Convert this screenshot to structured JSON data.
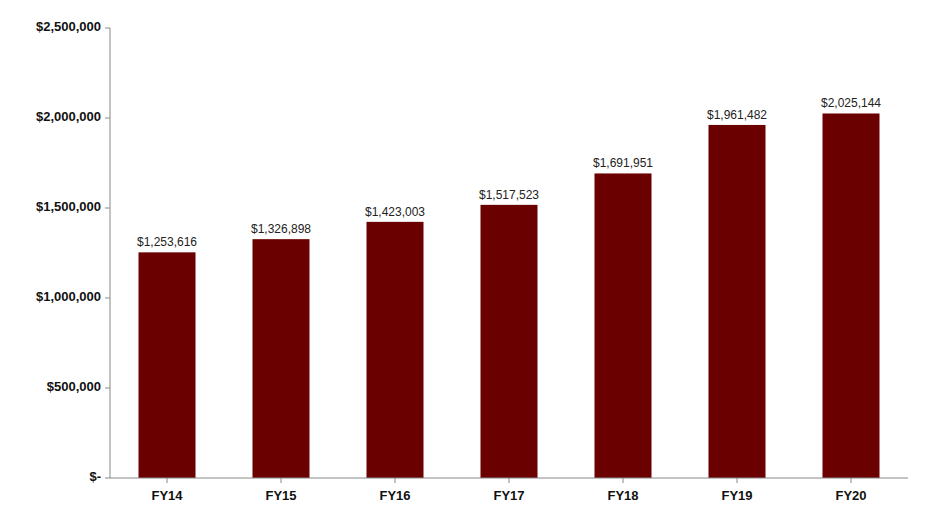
{
  "chart_data": {
    "type": "bar",
    "categories": [
      "FY14",
      "FY15",
      "FY16",
      "FY17",
      "FY18",
      "FY19",
      "FY20"
    ],
    "values": [
      1253616,
      1326898,
      1423003,
      1517523,
      1691951,
      1961482,
      2025144
    ],
    "value_labels": [
      "$1,253,616",
      "$1,326,898",
      "$1,423,003",
      "$1,517,523",
      "$1,691,951",
      "$1,961,482",
      "$2,025,144"
    ],
    "color": "#6B0000",
    "ylim": [
      0,
      2500000
    ],
    "yticks": [
      {
        "value": 0,
        "label": "$-"
      },
      {
        "value": 500000,
        "label": "$500,000"
      },
      {
        "value": 1000000,
        "label": "$1,000,000"
      },
      {
        "value": 1500000,
        "label": "$1,500,000"
      },
      {
        "value": 2000000,
        "label": "$2,000,000"
      },
      {
        "value": 2500000,
        "label": "$2,500,000"
      }
    ],
    "grid": false,
    "data_labels": true
  }
}
